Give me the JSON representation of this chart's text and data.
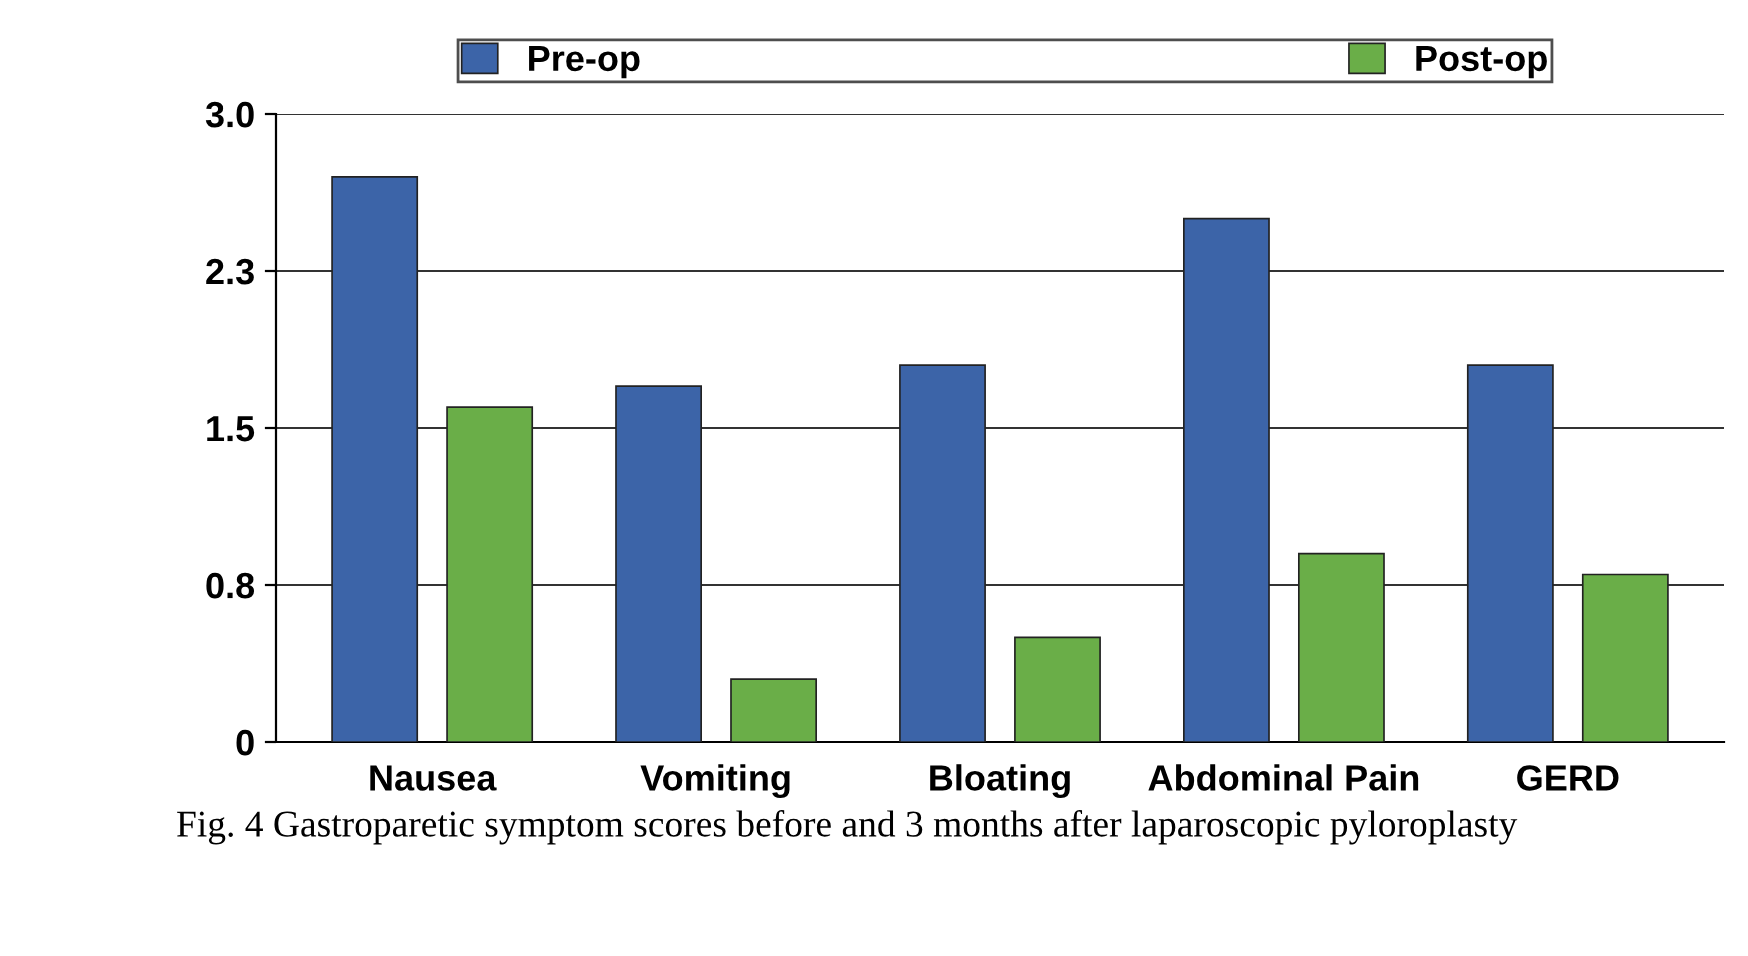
{
  "chart_data": {
    "type": "bar",
    "categories": [
      "Nausea",
      "Vomiting",
      "Bloating",
      "Abdominal Pain",
      "GERD"
    ],
    "series": [
      {
        "name": "Pre-op",
        "color": "#3c64a8",
        "values": [
          2.7,
          1.7,
          1.8,
          2.5,
          1.8
        ]
      },
      {
        "name": "Post-op",
        "color": "#6aae48",
        "values": [
          1.6,
          0.3,
          0.5,
          0.9,
          0.8
        ]
      }
    ],
    "ylim": [
      0,
      3.0
    ],
    "yticks": [
      0,
      {
        "value": 0.75,
        "label": "0.8"
      },
      1.5,
      {
        "value": 2.25,
        "label": "2.3"
      },
      {
        "value": 3.0,
        "label": "3.0"
      }
    ],
    "grid": "y",
    "legend": "top",
    "annotations": [
      "Fig. 4 Gastroparetic symptom scores before and 3 months after laparoscopic pyloroplasty"
    ]
  }
}
